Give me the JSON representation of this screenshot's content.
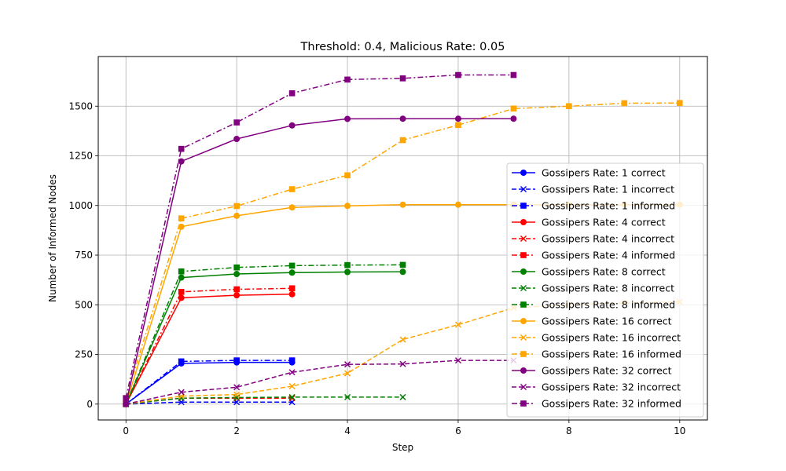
{
  "chart_data": {
    "type": "line",
    "title": "Threshold: 0.4, Malicious Rate: 0.05",
    "xlabel": "Step",
    "ylabel": "Number of Informed Nodes",
    "xlim": [
      -0.5,
      10.5
    ],
    "ylim": [
      -80,
      1750
    ],
    "xticks": [
      0,
      2,
      4,
      6,
      8,
      10
    ],
    "yticks": [
      0,
      250,
      500,
      750,
      1000,
      1250,
      1500
    ],
    "grid": true,
    "legend_position": "lower-right",
    "series": [
      {
        "name": "Gossipers Rate: 1 correct",
        "color": "#0000ff",
        "style": "solid",
        "marker": "circle",
        "x": [
          0,
          1,
          2,
          3
        ],
        "y": [
          0,
          205,
          210,
          210
        ]
      },
      {
        "name": "Gossipers Rate: 1 incorrect",
        "color": "#0000ff",
        "style": "dashed",
        "marker": "x",
        "x": [
          0,
          1,
          2,
          3
        ],
        "y": [
          0,
          10,
          10,
          10
        ]
      },
      {
        "name": "Gossipers Rate: 1 informed",
        "color": "#0000ff",
        "style": "dashdot",
        "marker": "square",
        "x": [
          0,
          1,
          2,
          3
        ],
        "y": [
          0,
          215,
          220,
          220
        ]
      },
      {
        "name": "Gossipers Rate: 4 correct",
        "color": "#ff0000",
        "style": "solid",
        "marker": "circle",
        "x": [
          0,
          1,
          2,
          3
        ],
        "y": [
          0,
          535,
          548,
          553
        ]
      },
      {
        "name": "Gossipers Rate: 4 incorrect",
        "color": "#ff0000",
        "style": "dashed",
        "marker": "x",
        "x": [
          0,
          1,
          2,
          3
        ],
        "y": [
          0,
          30,
          30,
          30
        ]
      },
      {
        "name": "Gossipers Rate: 4 informed",
        "color": "#ff0000",
        "style": "dashdot",
        "marker": "square",
        "x": [
          0,
          1,
          2,
          3
        ],
        "y": [
          0,
          565,
          578,
          583
        ]
      },
      {
        "name": "Gossipers Rate: 8 correct",
        "color": "#008000",
        "style": "solid",
        "marker": "circle",
        "x": [
          0,
          1,
          2,
          3,
          4,
          5
        ],
        "y": [
          0,
          637,
          655,
          662,
          665,
          666
        ]
      },
      {
        "name": "Gossipers Rate: 8 incorrect",
        "color": "#008000",
        "style": "dashed",
        "marker": "x",
        "x": [
          0,
          1,
          2,
          3,
          4,
          5
        ],
        "y": [
          0,
          30,
          33,
          35,
          35,
          35
        ]
      },
      {
        "name": "Gossipers Rate: 8 informed",
        "color": "#008000",
        "style": "dashdot",
        "marker": "square",
        "x": [
          0,
          1,
          2,
          3,
          4,
          5
        ],
        "y": [
          0,
          668,
          688,
          697,
          700,
          701
        ]
      },
      {
        "name": "Gossipers Rate: 16 correct",
        "color": "#ffa500",
        "style": "solid",
        "marker": "circle",
        "x": [
          0,
          1,
          2,
          3,
          4,
          5,
          6,
          7,
          8,
          9,
          10
        ],
        "y": [
          0,
          893,
          948,
          990,
          998,
          1004,
          1004,
          1004,
          1004,
          1004,
          1004
        ]
      },
      {
        "name": "Gossipers Rate: 16 incorrect",
        "color": "#ffa500",
        "style": "dashed",
        "marker": "x",
        "x": [
          0,
          1,
          2,
          3,
          4,
          5,
          6,
          7,
          8,
          9,
          10
        ],
        "y": [
          0,
          40,
          48,
          90,
          155,
          325,
          400,
          485,
          500,
          510,
          515
        ]
      },
      {
        "name": "Gossipers Rate: 16 informed",
        "color": "#ffa500",
        "style": "dashdot",
        "marker": "square",
        "x": [
          0,
          1,
          2,
          3,
          4,
          5,
          6,
          7,
          8,
          9,
          10
        ],
        "y": [
          30,
          935,
          997,
          1082,
          1152,
          1329,
          1405,
          1488,
          1500,
          1515,
          1516
        ]
      },
      {
        "name": "Gossipers Rate: 32 correct",
        "color": "#800080",
        "style": "solid",
        "marker": "circle",
        "x": [
          0,
          1,
          2,
          3,
          4,
          5,
          6,
          7
        ],
        "y": [
          0,
          1222,
          1335,
          1403,
          1436,
          1437,
          1437,
          1437
        ]
      },
      {
        "name": "Gossipers Rate: 32 incorrect",
        "color": "#800080",
        "style": "dashed",
        "marker": "x",
        "x": [
          0,
          1,
          2,
          3,
          4,
          5,
          6,
          7
        ],
        "y": [
          0,
          60,
          85,
          160,
          200,
          202,
          220,
          220
        ]
      },
      {
        "name": "Gossipers Rate: 32 informed",
        "color": "#800080",
        "style": "dashdot",
        "marker": "square",
        "x": [
          0,
          1,
          2,
          3,
          4,
          5,
          6,
          7
        ],
        "y": [
          30,
          1285,
          1418,
          1565,
          1634,
          1640,
          1657,
          1657
        ]
      }
    ]
  }
}
